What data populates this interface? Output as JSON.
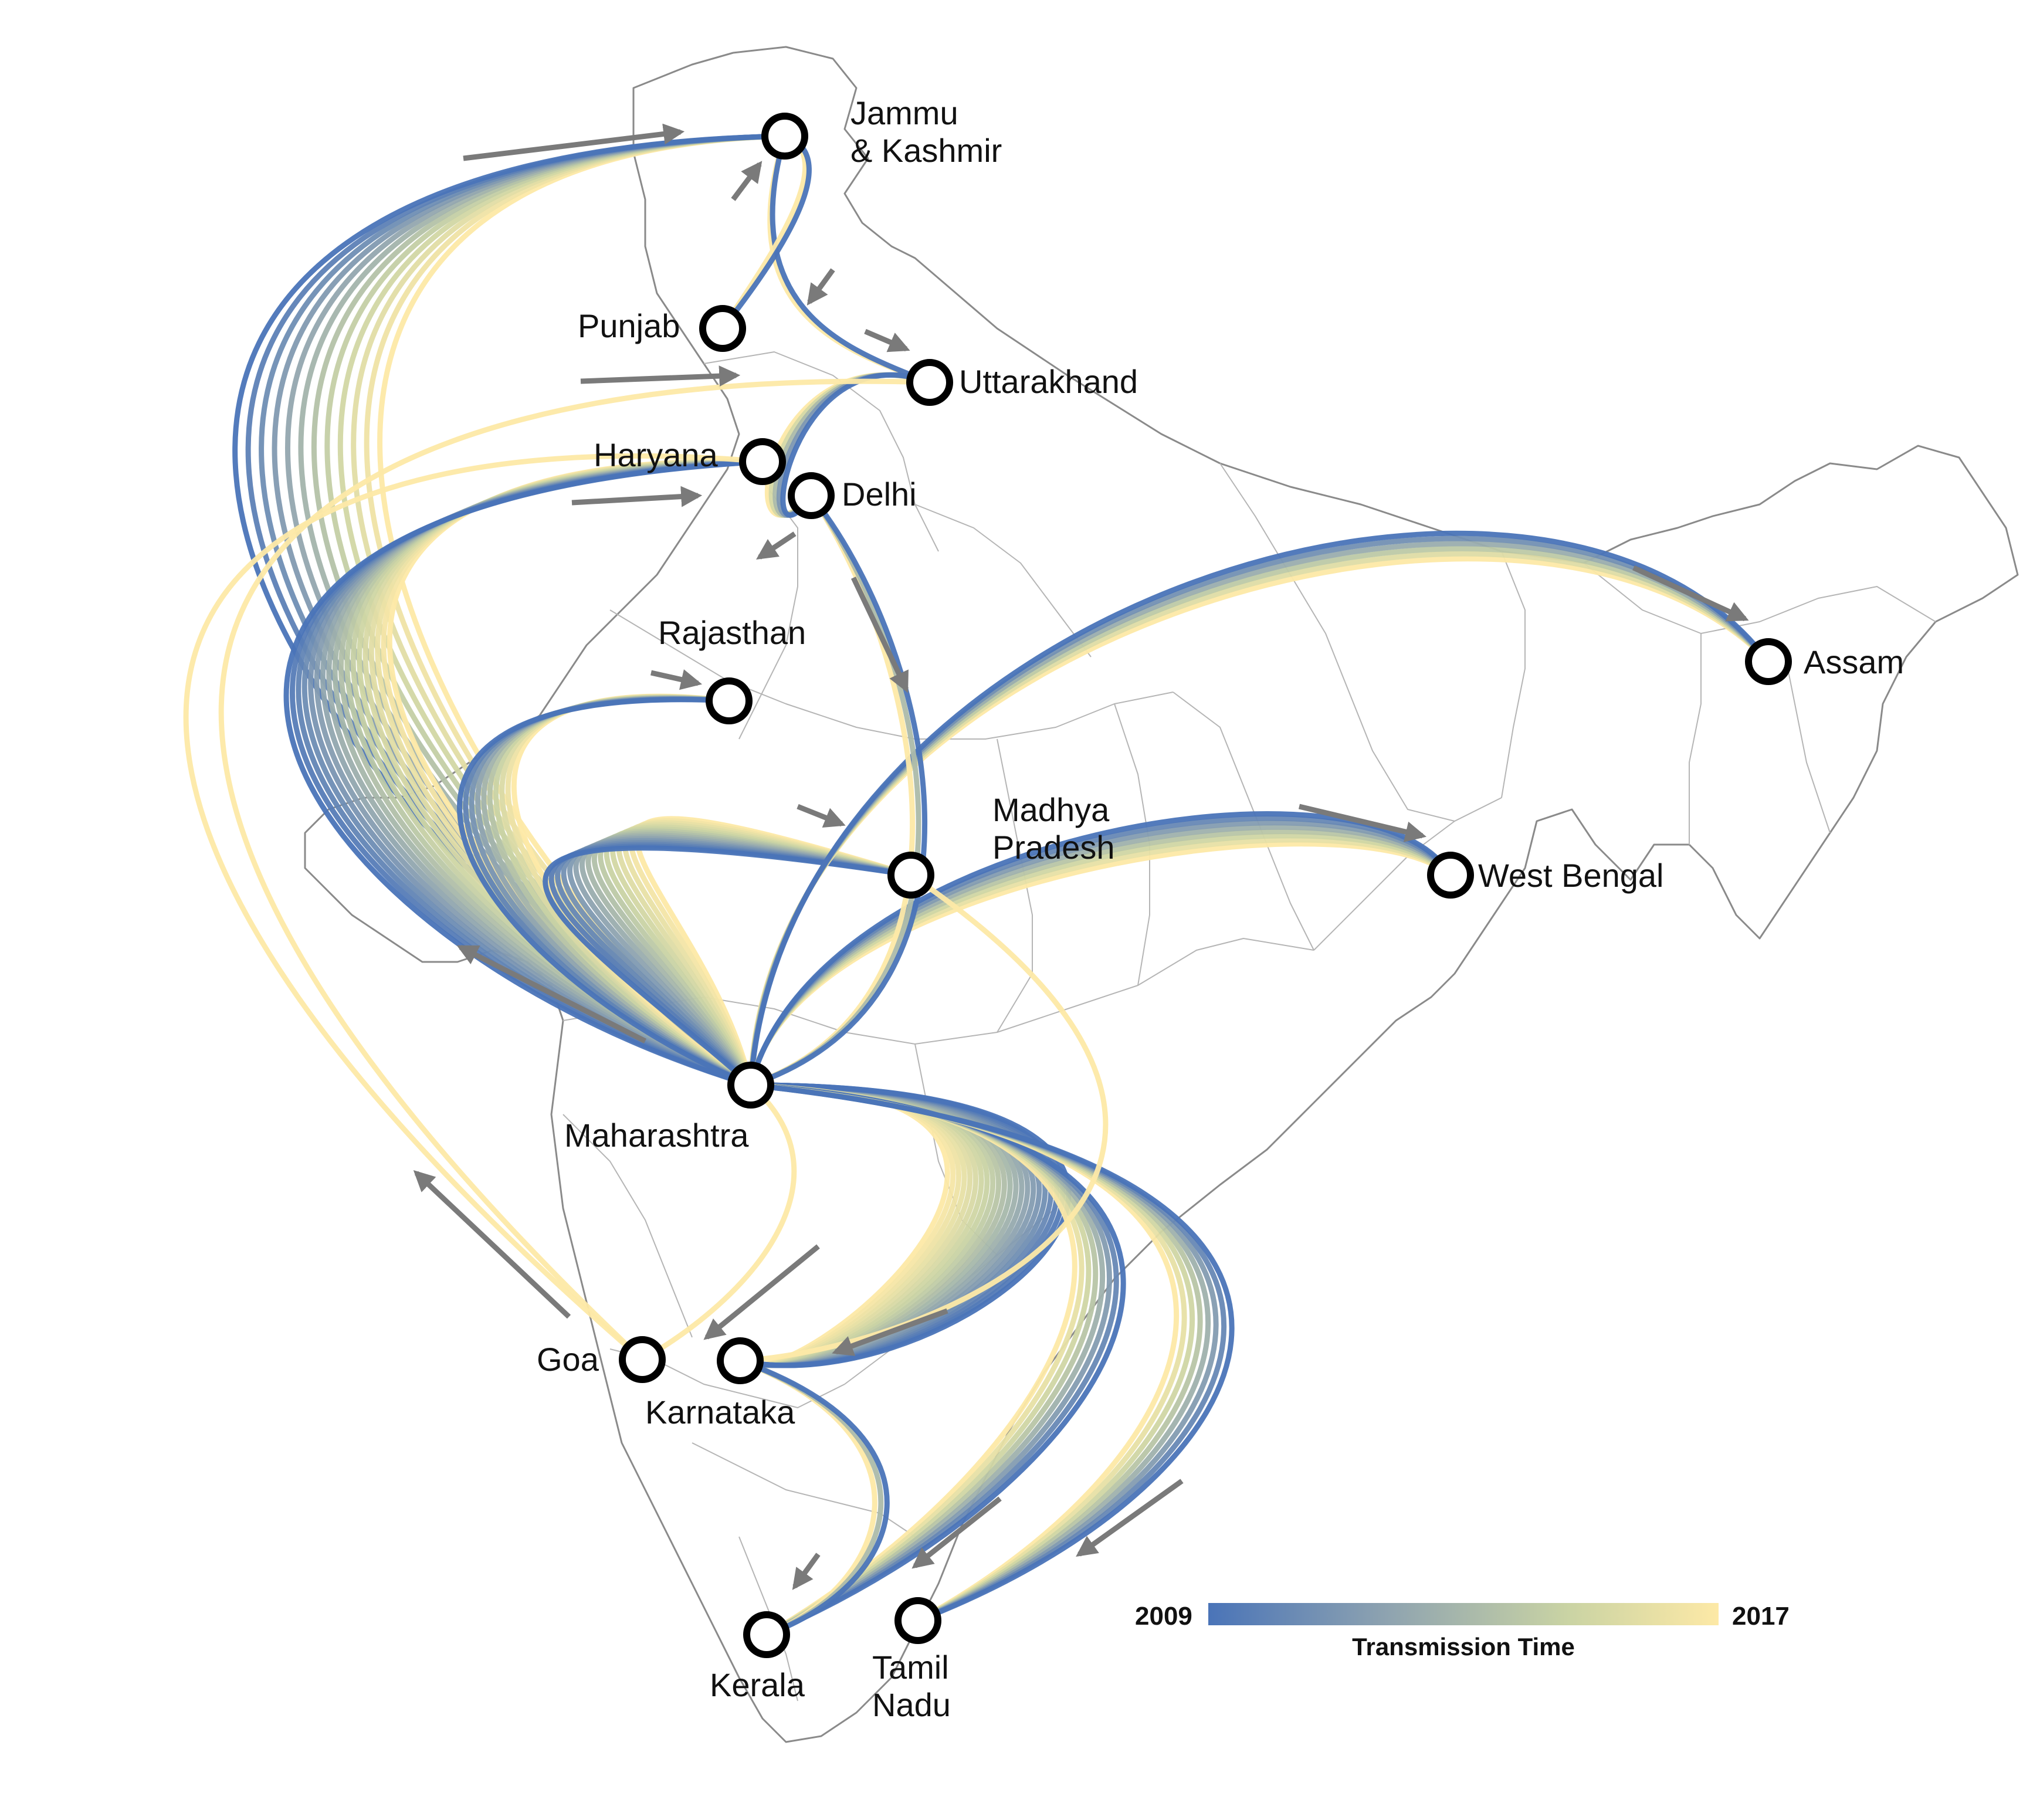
{
  "title": "",
  "legend": {
    "title": "Transmission Time",
    "start_label": "2009",
    "end_label": "2017",
    "colors": [
      "#4a74b8",
      "#8ea3b0",
      "#c9d3a4",
      "#fde9a6"
    ]
  },
  "states": [
    {
      "id": "jammu-kashmir",
      "label_lines": [
        "Jammu",
        "& Kashmir"
      ]
    },
    {
      "id": "punjab",
      "label_lines": [
        "Punjab"
      ]
    },
    {
      "id": "uttarakhand",
      "label_lines": [
        "Uttarakhand"
      ]
    },
    {
      "id": "haryana",
      "label_lines": [
        "Haryana"
      ]
    },
    {
      "id": "delhi",
      "label_lines": [
        "Delhi"
      ]
    },
    {
      "id": "rajasthan",
      "label_lines": [
        "Rajasthan"
      ]
    },
    {
      "id": "madhya-pradesh",
      "label_lines": [
        "Madhya",
        "Pradesh"
      ]
    },
    {
      "id": "assam",
      "label_lines": [
        "Assam"
      ]
    },
    {
      "id": "west-bengal",
      "label_lines": [
        "West Bengal"
      ]
    },
    {
      "id": "maharashtra",
      "label_lines": [
        "Maharashtra"
      ]
    },
    {
      "id": "goa",
      "label_lines": [
        "Goa"
      ]
    },
    {
      "id": "karnataka",
      "label_lines": [
        "Karnataka"
      ]
    },
    {
      "id": "kerala",
      "label_lines": [
        "Kerala"
      ]
    },
    {
      "id": "tamil-nadu",
      "label_lines": [
        "Tamil",
        "Nadu"
      ]
    }
  ],
  "flows": [
    {
      "from": "maharashtra",
      "to": "jammu-kashmir",
      "count": 12
    },
    {
      "from": "maharashtra",
      "to": "haryana",
      "count": 18
    },
    {
      "from": "maharashtra",
      "to": "rajasthan",
      "count": 10
    },
    {
      "from": "maharashtra",
      "to": "madhya-pradesh",
      "count": 16
    },
    {
      "from": "maharashtra",
      "to": "assam",
      "count": 6
    },
    {
      "from": "maharashtra",
      "to": "west-bengal",
      "count": 8
    },
    {
      "from": "maharashtra",
      "to": "karnataka",
      "count": 22
    },
    {
      "from": "maharashtra",
      "to": "kerala",
      "count": 8
    },
    {
      "from": "maharashtra",
      "to": "tamil-nadu",
      "count": 8
    },
    {
      "from": "maharashtra",
      "to": "goa",
      "count": 1
    },
    {
      "from": "delhi",
      "to": "maharashtra",
      "count": 3
    },
    {
      "from": "jammu-kashmir",
      "to": "uttarakhand",
      "count": 2
    },
    {
      "from": "punjab",
      "to": "jammu-kashmir",
      "count": 2
    },
    {
      "from": "uttarakhand",
      "to": "delhi",
      "count": 5
    },
    {
      "from": "goa",
      "to": "uttarakhand",
      "count": 1
    },
    {
      "from": "goa",
      "to": "haryana",
      "count": 1
    },
    {
      "from": "karnataka",
      "to": "kerala",
      "count": 3
    },
    {
      "from": "madhya-pradesh",
      "to": "karnataka",
      "count": 1
    }
  ]
}
